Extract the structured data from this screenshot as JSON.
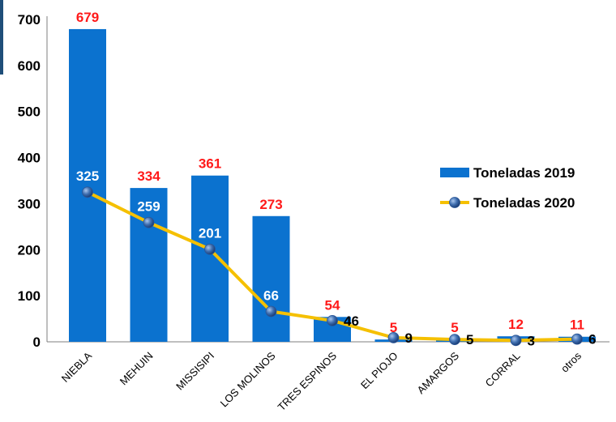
{
  "chart_data": {
    "type": "bar",
    "title": "",
    "xlabel": "",
    "ylabel": "",
    "ylim": [
      0,
      700
    ],
    "yticks": [
      0,
      100,
      200,
      300,
      400,
      500,
      600,
      700
    ],
    "categories": [
      "NIEBLA",
      "MEHUIN",
      "MISSISIPI",
      "LOS MOLINOS",
      "TRES ESPINOS",
      "EL PIOJO",
      "AMARGOS",
      "CORRAL",
      "otros"
    ],
    "series": [
      {
        "name": "Toneladas 2019",
        "type": "bar",
        "values": [
          679,
          334,
          361,
          273,
          54,
          5,
          5,
          12,
          11
        ],
        "labels": [
          "679",
          "334",
          "361",
          "273",
          "54",
          "5",
          "5",
          "12",
          "11"
        ]
      },
      {
        "name": "Toneladas 2020",
        "type": "line",
        "values": [
          325,
          259,
          201,
          66,
          46,
          9,
          5,
          3,
          6
        ],
        "labels": [
          "325",
          "259",
          "201",
          "66",
          "46",
          "9",
          "5",
          "3",
          "6"
        ]
      }
    ],
    "legend_position": "right",
    "grid": false,
    "colors": {
      "bar": "#0b72cf",
      "bar_label": "#ff1a1a",
      "line": "#f5c000",
      "marker": "#3f6fb0"
    }
  }
}
